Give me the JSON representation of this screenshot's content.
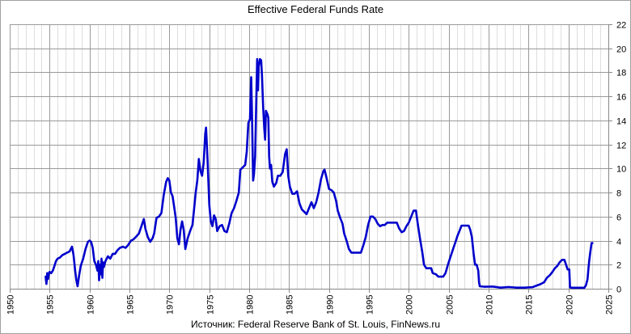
{
  "chart_data": {
    "type": "line",
    "title": "Effective Federal Funds Rate",
    "source_note": "Источник: Federal Reserve Bank of St. Louis, FinNews.ru",
    "xlabel": "",
    "ylabel": "",
    "xlim": [
      1950,
      2025
    ],
    "ylim": [
      0,
      22
    ],
    "x_ticks": [
      "1950",
      "1955",
      "1960",
      "1965",
      "1970",
      "1975",
      "1980",
      "1985",
      "1990",
      "1995",
      "2000",
      "2005",
      "2010",
      "2015",
      "2020",
      "2025"
    ],
    "y_ticks": [
      "0",
      "2",
      "4",
      "6",
      "8",
      "10",
      "12",
      "14",
      "16",
      "18",
      "20",
      "22"
    ],
    "y_axis_position": "right",
    "grid": true,
    "legend": "none",
    "line_color": "#0000CC",
    "series": [
      {
        "name": "Effective Federal Funds Rate",
        "points": [
          [
            1954.5,
            1.0
          ],
          [
            1954.6,
            0.4
          ],
          [
            1954.7,
            1.3
          ],
          [
            1954.8,
            0.8
          ],
          [
            1954.9,
            1.2
          ],
          [
            1955.0,
            1.4
          ],
          [
            1955.2,
            1.3
          ],
          [
            1955.4,
            1.5
          ],
          [
            1955.6,
            1.9
          ],
          [
            1955.8,
            2.3
          ],
          [
            1956.0,
            2.5
          ],
          [
            1956.3,
            2.6
          ],
          [
            1956.6,
            2.8
          ],
          [
            1956.9,
            2.9
          ],
          [
            1957.2,
            3.0
          ],
          [
            1957.5,
            3.1
          ],
          [
            1957.8,
            3.5
          ],
          [
            1958.0,
            2.8
          ],
          [
            1958.2,
            1.5
          ],
          [
            1958.35,
            0.7
          ],
          [
            1958.5,
            0.2
          ],
          [
            1958.7,
            1.1
          ],
          [
            1958.9,
            1.9
          ],
          [
            1959.2,
            2.5
          ],
          [
            1959.5,
            3.3
          ],
          [
            1959.8,
            3.9
          ],
          [
            1960.0,
            4.0
          ],
          [
            1960.2,
            3.9
          ],
          [
            1960.4,
            3.4
          ],
          [
            1960.6,
            2.3
          ],
          [
            1960.8,
            2.0
          ],
          [
            1961.0,
            1.5
          ],
          [
            1961.1,
            2.3
          ],
          [
            1961.2,
            0.7
          ],
          [
            1961.3,
            2.0
          ],
          [
            1961.4,
            1.2
          ],
          [
            1961.5,
            2.5
          ],
          [
            1961.6,
            0.9
          ],
          [
            1961.7,
            2.2
          ],
          [
            1961.8,
            1.8
          ],
          [
            1962.0,
            2.3
          ],
          [
            1962.3,
            2.7
          ],
          [
            1962.6,
            2.5
          ],
          [
            1962.9,
            2.9
          ],
          [
            1963.2,
            2.9
          ],
          [
            1963.5,
            3.2
          ],
          [
            1963.8,
            3.4
          ],
          [
            1964.2,
            3.5
          ],
          [
            1964.5,
            3.4
          ],
          [
            1964.8,
            3.6
          ],
          [
            1965.2,
            4.0
          ],
          [
            1965.5,
            4.1
          ],
          [
            1965.8,
            4.3
          ],
          [
            1966.2,
            4.6
          ],
          [
            1966.5,
            5.2
          ],
          [
            1966.8,
            5.8
          ],
          [
            1967.0,
            5.0
          ],
          [
            1967.3,
            4.3
          ],
          [
            1967.6,
            3.9
          ],
          [
            1967.9,
            4.2
          ],
          [
            1968.1,
            4.6
          ],
          [
            1968.4,
            5.9
          ],
          [
            1968.7,
            6.0
          ],
          [
            1969.0,
            6.3
          ],
          [
            1969.3,
            7.8
          ],
          [
            1969.6,
            8.9
          ],
          [
            1969.8,
            9.2
          ],
          [
            1970.0,
            9.0
          ],
          [
            1970.2,
            8.0
          ],
          [
            1970.4,
            7.7
          ],
          [
            1970.6,
            6.8
          ],
          [
            1970.8,
            5.9
          ],
          [
            1971.0,
            4.2
          ],
          [
            1971.2,
            3.7
          ],
          [
            1971.4,
            4.9
          ],
          [
            1971.6,
            5.6
          ],
          [
            1971.8,
            4.9
          ],
          [
            1972.0,
            3.3
          ],
          [
            1972.3,
            4.2
          ],
          [
            1972.6,
            4.8
          ],
          [
            1972.9,
            5.3
          ],
          [
            1973.1,
            6.6
          ],
          [
            1973.3,
            8.0
          ],
          [
            1973.5,
            9.0
          ],
          [
            1973.7,
            10.8
          ],
          [
            1973.9,
            9.8
          ],
          [
            1974.1,
            9.4
          ],
          [
            1974.3,
            10.5
          ],
          [
            1974.5,
            12.9
          ],
          [
            1974.6,
            13.4
          ],
          [
            1974.8,
            10.5
          ],
          [
            1975.0,
            7.0
          ],
          [
            1975.2,
            5.6
          ],
          [
            1975.4,
            5.2
          ],
          [
            1975.6,
            6.1
          ],
          [
            1975.8,
            5.8
          ],
          [
            1976.0,
            4.8
          ],
          [
            1976.3,
            5.2
          ],
          [
            1976.6,
            5.3
          ],
          [
            1976.9,
            4.8
          ],
          [
            1977.2,
            4.7
          ],
          [
            1977.5,
            5.4
          ],
          [
            1977.8,
            6.3
          ],
          [
            1978.1,
            6.7
          ],
          [
            1978.4,
            7.3
          ],
          [
            1978.7,
            8.0
          ],
          [
            1978.9,
            9.9
          ],
          [
            1979.2,
            10.1
          ],
          [
            1979.5,
            10.3
          ],
          [
            1979.7,
            11.4
          ],
          [
            1979.9,
            13.8
          ],
          [
            1980.1,
            14.1
          ],
          [
            1980.25,
            17.6
          ],
          [
            1980.35,
            14.5
          ],
          [
            1980.5,
            9.0
          ],
          [
            1980.6,
            9.5
          ],
          [
            1980.75,
            11.0
          ],
          [
            1980.9,
            16.0
          ],
          [
            1981.0,
            19.1
          ],
          [
            1981.1,
            16.5
          ],
          [
            1981.2,
            18.5
          ],
          [
            1981.35,
            19.1
          ],
          [
            1981.5,
            19.0
          ],
          [
            1981.6,
            17.8
          ],
          [
            1981.75,
            15.1
          ],
          [
            1981.9,
            13.3
          ],
          [
            1982.0,
            12.4
          ],
          [
            1982.1,
            14.8
          ],
          [
            1982.3,
            14.5
          ],
          [
            1982.4,
            14.2
          ],
          [
            1982.5,
            11.0
          ],
          [
            1982.6,
            10.0
          ],
          [
            1982.75,
            10.3
          ],
          [
            1982.9,
            8.9
          ],
          [
            1983.1,
            8.5
          ],
          [
            1983.4,
            8.8
          ],
          [
            1983.6,
            9.4
          ],
          [
            1983.9,
            9.4
          ],
          [
            1984.2,
            9.7
          ],
          [
            1984.5,
            11.2
          ],
          [
            1984.7,
            11.6
          ],
          [
            1984.9,
            9.4
          ],
          [
            1985.1,
            8.5
          ],
          [
            1985.4,
            7.9
          ],
          [
            1985.7,
            7.9
          ],
          [
            1986.0,
            8.1
          ],
          [
            1986.3,
            7.1
          ],
          [
            1986.6,
            6.6
          ],
          [
            1986.9,
            6.4
          ],
          [
            1987.2,
            6.2
          ],
          [
            1987.5,
            6.7
          ],
          [
            1987.8,
            7.2
          ],
          [
            1988.1,
            6.7
          ],
          [
            1988.4,
            7.2
          ],
          [
            1988.7,
            8.0
          ],
          [
            1989.0,
            9.1
          ],
          [
            1989.3,
            9.8
          ],
          [
            1989.45,
            9.9
          ],
          [
            1989.7,
            9.2
          ],
          [
            1990.0,
            8.3
          ],
          [
            1990.3,
            8.2
          ],
          [
            1990.6,
            8.0
          ],
          [
            1990.9,
            7.3
          ],
          [
            1991.1,
            6.5
          ],
          [
            1991.4,
            5.9
          ],
          [
            1991.7,
            5.4
          ],
          [
            1991.9,
            4.6
          ],
          [
            1992.2,
            4.0
          ],
          [
            1992.5,
            3.3
          ],
          [
            1992.8,
            3.0
          ],
          [
            1993.1,
            3.0
          ],
          [
            1993.4,
            3.0
          ],
          [
            1993.7,
            3.0
          ],
          [
            1994.0,
            3.0
          ],
          [
            1994.3,
            3.6
          ],
          [
            1994.6,
            4.3
          ],
          [
            1994.9,
            5.3
          ],
          [
            1995.2,
            6.0
          ],
          [
            1995.5,
            6.0
          ],
          [
            1995.8,
            5.8
          ],
          [
            1996.1,
            5.4
          ],
          [
            1996.4,
            5.2
          ],
          [
            1996.7,
            5.3
          ],
          [
            1997.0,
            5.3
          ],
          [
            1997.3,
            5.5
          ],
          [
            1997.6,
            5.5
          ],
          [
            1997.9,
            5.5
          ],
          [
            1998.2,
            5.5
          ],
          [
            1998.5,
            5.5
          ],
          [
            1998.8,
            5.0
          ],
          [
            1999.1,
            4.7
          ],
          [
            1999.4,
            4.8
          ],
          [
            1999.7,
            5.2
          ],
          [
            2000.0,
            5.5
          ],
          [
            2000.3,
            6.0
          ],
          [
            2000.6,
            6.5
          ],
          [
            2000.9,
            6.5
          ],
          [
            2001.1,
            5.5
          ],
          [
            2001.4,
            4.2
          ],
          [
            2001.7,
            3.0
          ],
          [
            2001.9,
            2.0
          ],
          [
            2002.2,
            1.7
          ],
          [
            2002.5,
            1.7
          ],
          [
            2002.8,
            1.7
          ],
          [
            2003.0,
            1.3
          ],
          [
            2003.4,
            1.2
          ],
          [
            2003.7,
            1.0
          ],
          [
            2004.0,
            1.0
          ],
          [
            2004.3,
            1.0
          ],
          [
            2004.6,
            1.3
          ],
          [
            2004.9,
            2.0
          ],
          [
            2005.2,
            2.6
          ],
          [
            2005.5,
            3.2
          ],
          [
            2005.8,
            3.8
          ],
          [
            2006.1,
            4.4
          ],
          [
            2006.4,
            4.9
          ],
          [
            2006.6,
            5.25
          ],
          [
            2006.9,
            5.25
          ],
          [
            2007.2,
            5.25
          ],
          [
            2007.5,
            5.25
          ],
          [
            2007.7,
            4.9
          ],
          [
            2007.9,
            4.3
          ],
          [
            2008.1,
            3.0
          ],
          [
            2008.3,
            2.0
          ],
          [
            2008.5,
            2.0
          ],
          [
            2008.7,
            1.5
          ],
          [
            2008.8,
            0.5
          ],
          [
            2008.9,
            0.2
          ],
          [
            2009.5,
            0.16
          ],
          [
            2010.5,
            0.18
          ],
          [
            2011.5,
            0.09
          ],
          [
            2012.5,
            0.14
          ],
          [
            2013.5,
            0.09
          ],
          [
            2014.5,
            0.09
          ],
          [
            2015.5,
            0.13
          ],
          [
            2015.95,
            0.24
          ],
          [
            2016.5,
            0.38
          ],
          [
            2016.95,
            0.54
          ],
          [
            2017.3,
            0.9
          ],
          [
            2017.7,
            1.15
          ],
          [
            2018.0,
            1.4
          ],
          [
            2018.3,
            1.7
          ],
          [
            2018.6,
            1.9
          ],
          [
            2018.9,
            2.2
          ],
          [
            2019.2,
            2.4
          ],
          [
            2019.5,
            2.4
          ],
          [
            2019.7,
            2.0
          ],
          [
            2019.9,
            1.6
          ],
          [
            2020.1,
            1.6
          ],
          [
            2020.2,
            0.1
          ],
          [
            2020.5,
            0.08
          ],
          [
            2021.0,
            0.08
          ],
          [
            2021.5,
            0.08
          ],
          [
            2022.0,
            0.08
          ],
          [
            2022.2,
            0.3
          ],
          [
            2022.4,
            0.8
          ],
          [
            2022.5,
            1.6
          ],
          [
            2022.6,
            2.3
          ],
          [
            2022.75,
            3.1
          ],
          [
            2022.9,
            3.8
          ],
          [
            2023.0,
            3.8
          ]
        ]
      }
    ]
  }
}
